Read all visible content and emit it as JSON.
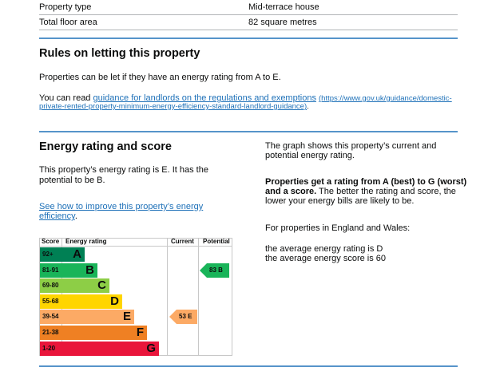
{
  "summary": {
    "rows": [
      {
        "label": "Property type",
        "value": "Mid-terrace house"
      },
      {
        "label": "Total floor area",
        "value": "82 square metres"
      }
    ]
  },
  "rules": {
    "heading": "Rules on letting this property",
    "para1": "Properties can be let if they have an energy rating from A to E.",
    "para2_prefix": "You can read ",
    "link_text": "guidance for landlords on the regulations and exemptions",
    "link_url_line1": "(https://www.gov.uk/guidance/domestic-",
    "link_url_line2": "private-rented-property-minimum-energy-efficiency-standard-landlord-guidance)",
    "para2_suffix": "."
  },
  "energy": {
    "heading": "Energy rating and score",
    "para1_line1": "This property’s energy rating is E. It has the",
    "para1_line2": "potential to be B.",
    "improve_link_line1": "See how to improve this property’s energy",
    "improve_link_line2": "efficiency",
    "improve_suffix": "."
  },
  "right": {
    "p1_line1": "The graph shows this property’s current and",
    "p1_line2": "potential energy rating.",
    "p2_bold_line1": "Properties get a rating from A (best) to G (worst)",
    "p2_bold_line2": "and a score.",
    "p2_rest_line2": " The better the rating and score, the",
    "p2_line3": "lower your energy bills are likely to be.",
    "p3": "For properties in England and Wales:",
    "p4_line1": "the average energy rating is D",
    "p4_line2": "the average energy score is 60"
  },
  "chart_data": {
    "type": "table",
    "headers": {
      "score": "Score",
      "rating": "Energy rating",
      "current": "Current",
      "potential": "Potential"
    },
    "bands": [
      {
        "range": "92+",
        "letter": "A",
        "color": "#008054"
      },
      {
        "range": "81-91",
        "letter": "B",
        "color": "#19b459"
      },
      {
        "range": "69-80",
        "letter": "C",
        "color": "#8dce46"
      },
      {
        "range": "55-68",
        "letter": "D",
        "color": "#ffd500"
      },
      {
        "range": "39-54",
        "letter": "E",
        "color": "#fcaa65"
      },
      {
        "range": "21-38",
        "letter": "F",
        "color": "#ef8023"
      },
      {
        "range": "1-20",
        "letter": "G",
        "color": "#e9153b"
      }
    ],
    "current": {
      "score": "53",
      "letter": "E",
      "label": "53  E",
      "color": "#fcaa65"
    },
    "potential": {
      "score": "83",
      "letter": "B",
      "label": "83  B",
      "color": "#19b459"
    }
  }
}
